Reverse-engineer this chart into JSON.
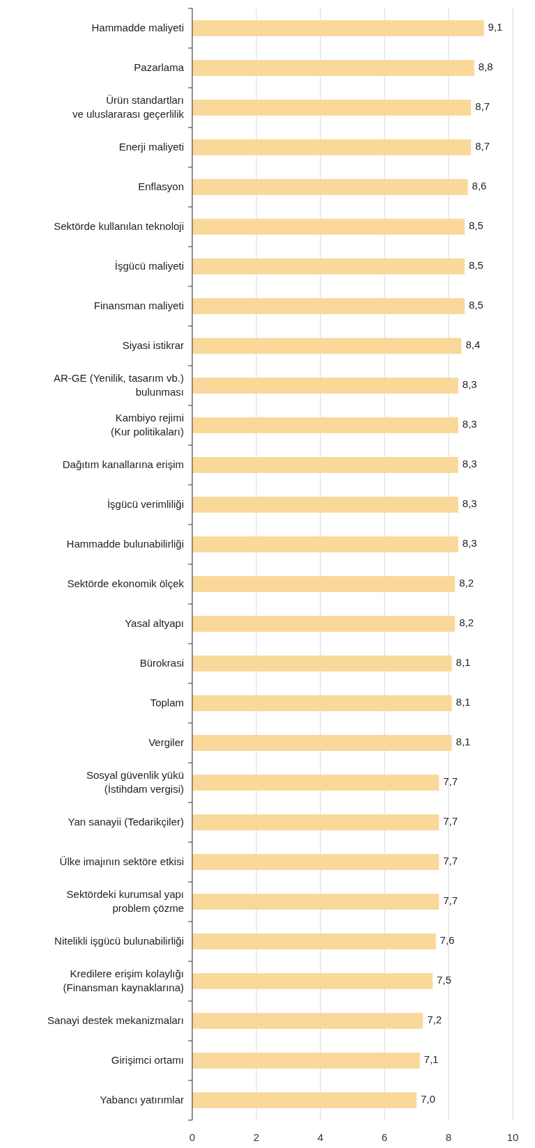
{
  "chart_data": {
    "type": "bar",
    "orientation": "horizontal",
    "categories": [
      "Hammadde maliyeti",
      "Pazarlama",
      "Ürün standartları\nve uluslararası geçerlilik",
      "Enerji maliyeti",
      "Enflasyon",
      "Sektörde kullanılan teknoloji",
      "İşgücü maliyeti",
      "Finansman maliyeti",
      "Siyasi istikrar",
      "AR-GE (Yenilik, tasarım vb.)\nbulunması",
      "Kambiyo rejimi\n(Kur politikaları)",
      "Dağıtım kanallarına erişim",
      "İşgücü verimliliği",
      "Hammadde bulunabilirliği",
      "Sektörde ekonomik ölçek",
      "Yasal altyapı",
      "Bürokrasi",
      "Toplam",
      "Vergiler",
      "Sosyal güvenlik yükü\n(İstihdam vergisi)",
      "Yan sanayii (Tedarikçiler)",
      "Ülke imajının sektöre etkisi",
      "Sektördeki kurumsal yapı\nproblem çözme",
      "Nitelikli işgücü bulunabilirliği",
      "Kredilere erişim kolaylığı\n(Finansman kaynaklarına)",
      "Sanayi destek mekanizmaları",
      "Girişimci ortamı",
      "Yabancı yatırımlar"
    ],
    "values": [
      9.1,
      8.8,
      8.7,
      8.7,
      8.6,
      8.5,
      8.5,
      8.5,
      8.4,
      8.3,
      8.3,
      8.3,
      8.3,
      8.3,
      8.2,
      8.2,
      8.1,
      8.1,
      8.1,
      7.7,
      7.7,
      7.7,
      7.7,
      7.6,
      7.5,
      7.2,
      7.1,
      7.0
    ],
    "value_labels": [
      "9,1",
      "8,8",
      "8,7",
      "8,7",
      "8,6",
      "8,5",
      "8,5",
      "8,5",
      "8,4",
      "8,3",
      "8,3",
      "8,3",
      "8,3",
      "8,3",
      "8,2",
      "8,2",
      "8,1",
      "8,1",
      "8,1",
      "7,7",
      "7,7",
      "7,7",
      "7,7",
      "7,6",
      "7,5",
      "7,2",
      "7,1",
      "7,0"
    ],
    "color": "#f9d89a",
    "xlim": [
      0,
      10
    ],
    "xticks": [
      0,
      2,
      4,
      6,
      8,
      10
    ],
    "grid": "x"
  }
}
